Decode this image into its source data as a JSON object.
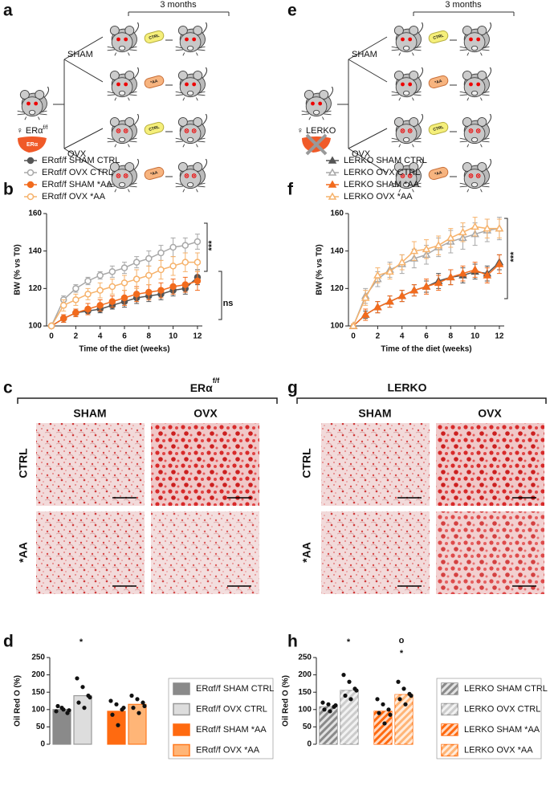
{
  "panel_labels": [
    "a",
    "b",
    "c",
    "d",
    "e",
    "f",
    "g",
    "h"
  ],
  "diagrams": [
    {
      "duration": "3 months",
      "groups": [
        "SHAM",
        "OVX"
      ],
      "genotype": "♀ ERα",
      "genotype_sup": "f/f",
      "organ": "ERα",
      "treatments": [
        "CTRL",
        "*AA",
        "CTRL",
        "*AA"
      ]
    },
    {
      "duration": "3 months",
      "groups": [
        "SHAM",
        "OVX"
      ],
      "genotype": "♀ LERKO",
      "treatments": [
        "CTRL",
        "*AA",
        "CTRL",
        "*AA"
      ]
    }
  ],
  "histology": [
    {
      "title": "ERα",
      "title_sup": "f/f",
      "columns": [
        "SHAM",
        "OVX"
      ],
      "rows": [
        "CTRL",
        "*AA"
      ]
    },
    {
      "title": "LERKO",
      "columns": [
        "SHAM",
        "OVX"
      ],
      "rows": [
        "CTRL",
        "*AA"
      ]
    }
  ],
  "chart_data": [
    {
      "type": "line",
      "ylabel": "BW (% vs T0)",
      "xlabel": "Time of the diet (weeks)",
      "x": [
        0,
        1,
        2,
        3,
        4,
        5,
        6,
        7,
        8,
        9,
        10,
        11,
        12
      ],
      "xlim": [
        -0.4,
        12.4
      ],
      "xticks": [
        0,
        2,
        4,
        6,
        8,
        10,
        12
      ],
      "ylim": [
        100,
        160
      ],
      "yticks": [
        100,
        120,
        140,
        160
      ],
      "marker": "circle",
      "annotations": [
        "***",
        "ns"
      ],
      "series": [
        {
          "name": "ERαf/f SHAM CTRL",
          "color": "#555555",
          "filled": true,
          "values": [
            100,
            104,
            107,
            108,
            109,
            111,
            113,
            115,
            116,
            117,
            119,
            120,
            126
          ],
          "errors": [
            1,
            2,
            2,
            2,
            2,
            2,
            3,
            3,
            3,
            3,
            3,
            3,
            4
          ]
        },
        {
          "name": "ERαf/f OVX CTRL",
          "color": "#a8a8a8",
          "filled": false,
          "values": [
            100,
            114,
            120,
            124,
            127,
            129,
            131,
            134,
            136,
            139,
            142,
            143,
            145
          ],
          "errors": [
            1,
            2,
            2,
            2,
            2,
            3,
            3,
            3,
            4,
            4,
            5,
            4,
            4
          ]
        },
        {
          "name": "ERαf/f SHAM *AA",
          "color": "#f26b1d",
          "filled": true,
          "values": [
            100,
            104,
            107,
            109,
            111,
            113,
            115,
            117,
            118,
            119,
            121,
            122,
            124
          ],
          "errors": [
            1,
            2,
            2,
            3,
            3,
            3,
            4,
            4,
            4,
            4,
            4,
            4,
            5
          ]
        },
        {
          "name": "ERαf/f OVX *AA",
          "color": "#f6b26b",
          "filled": false,
          "values": [
            100,
            111,
            114,
            117,
            119,
            121,
            123,
            125,
            127,
            130,
            132,
            134,
            134
          ],
          "errors": [
            1,
            3,
            3,
            3,
            4,
            4,
            4,
            5,
            5,
            5,
            5,
            5,
            5
          ]
        }
      ]
    },
    {
      "type": "line",
      "ylabel": "BW (% vs T0)",
      "xlabel": "Time of the diet (weeks)",
      "x": [
        0,
        1,
        2,
        3,
        4,
        5,
        6,
        7,
        8,
        9,
        10,
        11,
        12
      ],
      "xlim": [
        -0.4,
        12.4
      ],
      "xticks": [
        0,
        2,
        4,
        6,
        8,
        10,
        12
      ],
      "ylim": [
        100,
        160
      ],
      "yticks": [
        100,
        120,
        140,
        160
      ],
      "marker": "triangle",
      "annotations": [
        "***"
      ],
      "series": [
        {
          "name": "LERKO SHAM CTRL",
          "color": "#555555",
          "filled": true,
          "values": [
            100,
            106,
            110,
            113,
            116,
            119,
            121,
            124,
            126,
            127,
            129,
            128,
            134
          ],
          "errors": [
            1,
            2,
            3,
            3,
            3,
            3,
            3,
            4,
            4,
            4,
            4,
            4,
            4
          ]
        },
        {
          "name": "LERKO OVX CTRL",
          "color": "#a8a8a8",
          "filled": false,
          "values": [
            100,
            116,
            125,
            130,
            133,
            136,
            138,
            142,
            145,
            147,
            149,
            151,
            152
          ],
          "errors": [
            1,
            4,
            4,
            4,
            5,
            5,
            5,
            5,
            6,
            6,
            6,
            6,
            6
          ]
        },
        {
          "name": "LERKO SHAM *AA",
          "color": "#f26b1d",
          "filled": true,
          "values": [
            100,
            106,
            110,
            113,
            116,
            119,
            121,
            123,
            126,
            128,
            130,
            127,
            133
          ],
          "errors": [
            1,
            3,
            3,
            3,
            3,
            3,
            4,
            4,
            4,
            4,
            4,
            4,
            5
          ]
        },
        {
          "name": "LERKO OVX *AA",
          "color": "#f6b26b",
          "filled": false,
          "values": [
            100,
            115,
            127,
            129,
            134,
            140,
            141,
            143,
            147,
            150,
            153,
            152,
            152
          ],
          "errors": [
            1,
            4,
            4,
            4,
            4,
            5,
            5,
            5,
            5,
            5,
            5,
            5,
            5
          ]
        }
      ]
    },
    {
      "type": "bar",
      "ylabel": "Oil Red O (%)",
      "ylim": [
        0,
        250
      ],
      "yticks": [
        0,
        50,
        100,
        150,
        200,
        250
      ],
      "hatch": false,
      "annotations": [
        "*"
      ],
      "series": [
        {
          "name": "ERαf/f SHAM CTRL",
          "color": "#8a8a8a",
          "edge": "#8a8a8a",
          "values": [
            100
          ],
          "points": [
            [
              95,
              105,
              90,
              110,
              100,
              98
            ]
          ]
        },
        {
          "name": "ERαf/f OVX CTRL",
          "color": "#dddddd",
          "edge": "#999999",
          "values": [
            140
          ],
          "points": [
            [
              190,
              165,
              140,
              120,
              105,
              135
            ]
          ]
        },
        {
          "name": "ERαf/f SHAM *AA",
          "color": "#ff6a10",
          "edge": "#ff6a10",
          "values": [
            95
          ],
          "points": [
            [
              125,
              115,
              100,
              85,
              55,
              105
            ]
          ]
        },
        {
          "name": "ERαf/f OVX *AA",
          "color": "#ffb577",
          "edge": "#ff7a20",
          "values": [
            115
          ],
          "points": [
            [
              140,
              130,
              120,
              105,
              90,
              110
            ]
          ]
        }
      ]
    },
    {
      "type": "bar",
      "ylabel": "Oil Red O (%)",
      "ylim": [
        0,
        250
      ],
      "yticks": [
        0,
        50,
        100,
        150,
        200,
        250
      ],
      "hatch": true,
      "annotations": [
        "*",
        "o",
        "*"
      ],
      "series": [
        {
          "name": "LERKO SHAM CTRL",
          "color": "#8a8a8a",
          "edge": "#8a8a8a",
          "values": [
            108
          ],
          "points": [
            [
              120,
              115,
              108,
              100,
              95,
              112
            ]
          ]
        },
        {
          "name": "LERKO OVX CTRL",
          "color": "#cccccc",
          "edge": "#999999",
          "values": [
            155
          ],
          "points": [
            [
              200,
              180,
              160,
              140,
              130,
              155
            ]
          ]
        },
        {
          "name": "LERKO SHAM *AA",
          "color": "#ff6a10",
          "edge": "#ff6a10",
          "values": [
            95
          ],
          "points": [
            [
              130,
              115,
              100,
              90,
              60,
              85
            ]
          ]
        },
        {
          "name": "LERKO OVX *AA",
          "color": "#ffb577",
          "edge": "#ff7a20",
          "values": [
            143
          ],
          "points": [
            [
              180,
              160,
              145,
              130,
              115,
              140
            ]
          ]
        }
      ]
    }
  ]
}
